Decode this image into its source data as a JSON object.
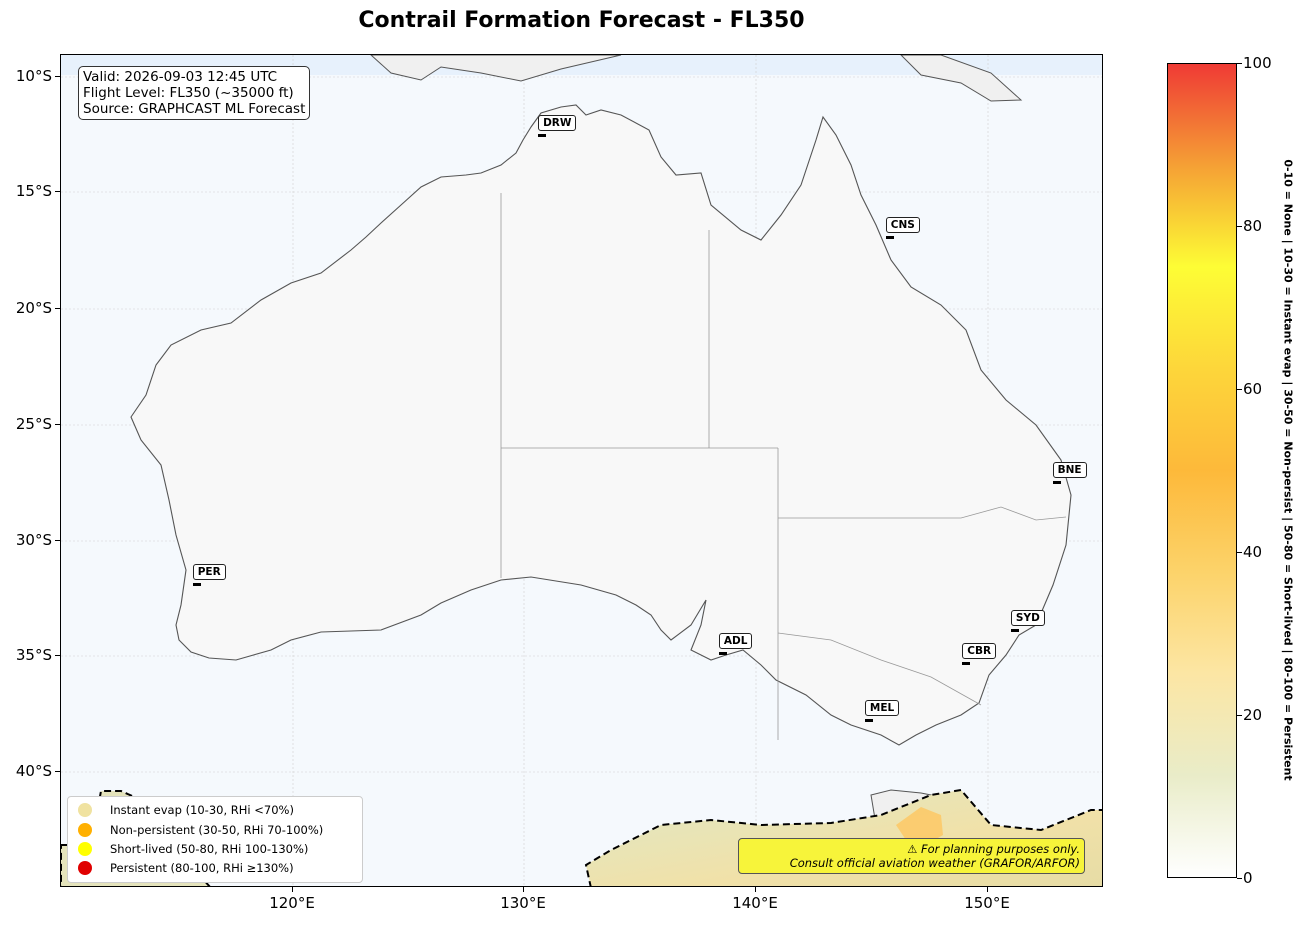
{
  "title": "Contrail Formation Forecast - FL350",
  "info": {
    "valid": "Valid: 2026-09-03 12:45 UTC",
    "flight_level": "Flight Level: FL350 (~35000 ft)",
    "source": "Source: GRAPHCAST ML Forecast"
  },
  "axes": {
    "lat_ticks": [
      "10°S",
      "15°S",
      "20°S",
      "25°S",
      "30°S",
      "35°S",
      "40°S"
    ],
    "lon_ticks": [
      "120°E",
      "130°E",
      "140°E",
      "150°E"
    ],
    "lon_range": [
      110,
      155
    ],
    "lat_range": [
      -9,
      -45
    ]
  },
  "cities": [
    {
      "code": "DRW",
      "lon": 130.8,
      "lat": -12.5
    },
    {
      "code": "CNS",
      "lon": 145.8,
      "lat": -16.9
    },
    {
      "code": "BNE",
      "lon": 153.0,
      "lat": -27.5
    },
    {
      "code": "PER",
      "lon": 115.9,
      "lat": -31.9
    },
    {
      "code": "SYD",
      "lon": 151.2,
      "lat": -33.9
    },
    {
      "code": "ADL",
      "lon": 138.6,
      "lat": -34.9
    },
    {
      "code": "CBR",
      "lon": 149.1,
      "lat": -35.3
    },
    {
      "code": "MEL",
      "lon": 144.9,
      "lat": -37.8
    }
  ],
  "legend": [
    {
      "label": "Instant evap (10-30, RHi <70%)",
      "color": "#f0e2a0"
    },
    {
      "label": "Non-persistent (30-50, RHi 70-100%)",
      "color": "#ffb000"
    },
    {
      "label": "Short-lived (50-80, RHi 100-130%)",
      "color": "#ffff00"
    },
    {
      "label": "Persistent (80-100, RHi ≥130%)",
      "color": "#e00000"
    }
  ],
  "warning": {
    "line1": "⚠ For planning purposes only.",
    "line2": "Consult official aviation weather (GRAFOR/ARFOR)"
  },
  "colorbar": {
    "min": 0,
    "max": 100,
    "ticks": [
      "0",
      "20",
      "40",
      "60",
      "80",
      "100"
    ],
    "label": "0-10 = None  |  10-30 = Instant evap  |  30-50 = Non-persist  |  50-80 = Short-lived  |  80-100 = Persistent",
    "colors": [
      "#ffffff",
      "#e9ecc8",
      "#fce6a4",
      "#fcd36a",
      "#fdb93a",
      "#fdd63a",
      "#fdfd35",
      "#f5a035",
      "#ef3a35"
    ]
  }
}
